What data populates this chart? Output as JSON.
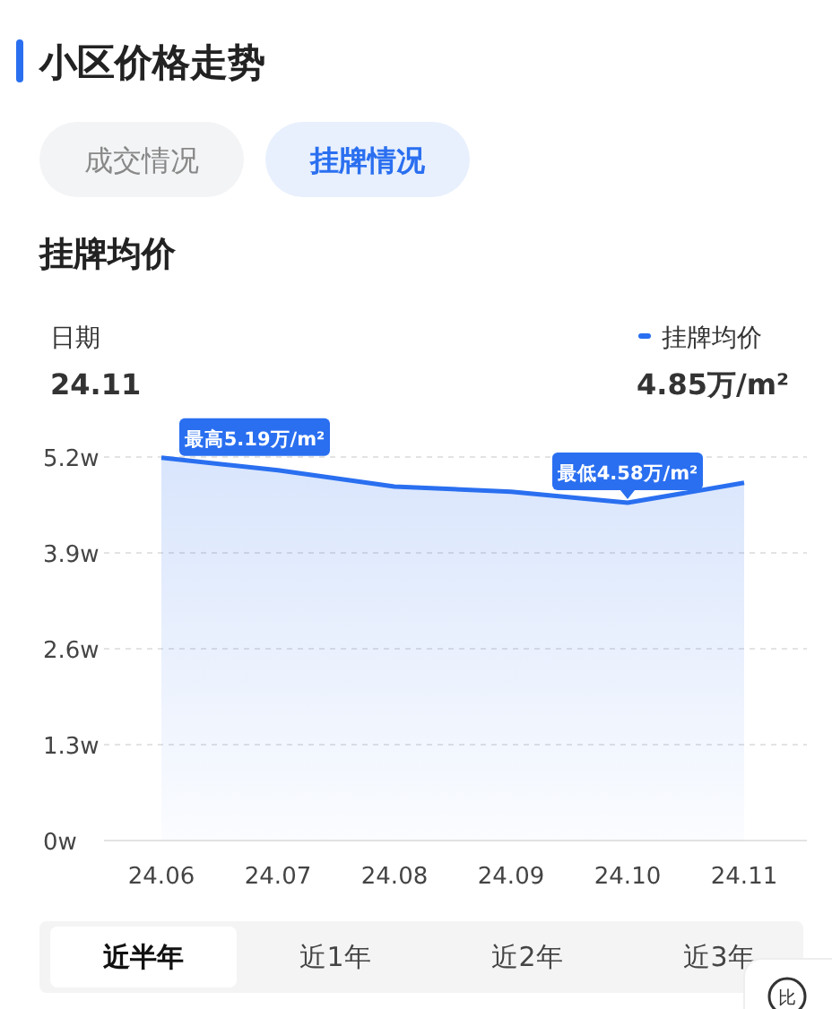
{
  "chart_data": {
    "type": "area",
    "title": "小区价格走势",
    "subtitle": "挂牌均价",
    "categories": [
      "24.06",
      "24.07",
      "24.08",
      "24.09",
      "24.10",
      "24.11"
    ],
    "series": [
      {
        "name": "挂牌均价",
        "color": "#2a6ff0",
        "values": [
          5.19,
          5.02,
          4.8,
          4.73,
          4.58,
          4.85
        ]
      }
    ],
    "ylim": [
      0,
      5.2
    ],
    "yticks": [
      {
        "value": 0,
        "label": "0w"
      },
      {
        "value": 1.3,
        "label": "1.3w"
      },
      {
        "value": 2.6,
        "label": "2.6w"
      },
      {
        "value": 3.9,
        "label": "3.9w"
      },
      {
        "value": 5.2,
        "label": "5.2w"
      }
    ],
    "grid": "y",
    "legend": "top right",
    "line_style": "solid",
    "marker": "none",
    "annotations": [
      "成交情况",
      "挂牌情况",
      "日期",
      "24.11",
      "4.85万/m²",
      {
        "text": "最高5.19万/m²",
        "x": "24.06",
        "y": 5.19
      },
      {
        "text": "最低4.58万/m²",
        "x": "24.10",
        "y": 4.58
      },
      "近半年",
      "近1年",
      "近2年",
      "近3年",
      "比"
    ]
  }
}
